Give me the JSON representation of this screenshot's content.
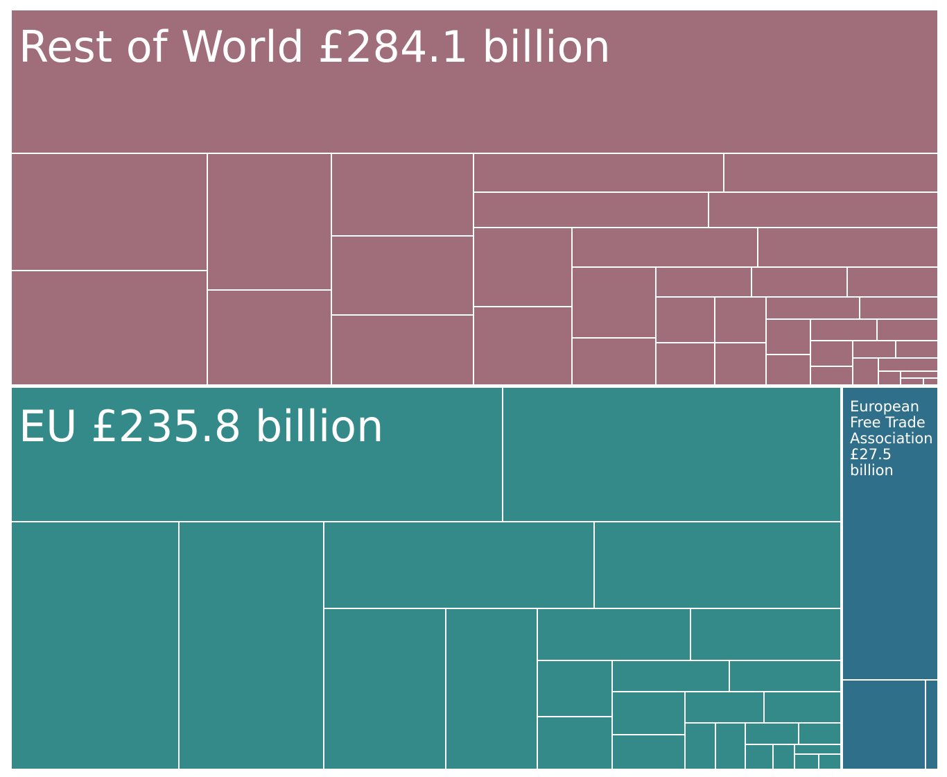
{
  "chart_data": {
    "type": "treemap",
    "title": "",
    "colors": {
      "Rest of World": "#a06d7a",
      "EU": "#348a89",
      "European Free Trade Association": "#2f6f8a",
      "border": "#ffffff"
    },
    "groups": [
      {
        "name": "Rest of World",
        "label": "Rest of World £284.1 billion",
        "value": 284.1,
        "unit": "£ billion"
      },
      {
        "name": "EU",
        "label": "EU £235.8 billion",
        "value": 235.8,
        "unit": "£ billion"
      },
      {
        "name": "European Free Trade Association",
        "label_lines": [
          "European",
          "Free Trade",
          "Association",
          "£27.5",
          "billion"
        ],
        "value": 27.5,
        "unit": "£ billion"
      }
    ]
  }
}
